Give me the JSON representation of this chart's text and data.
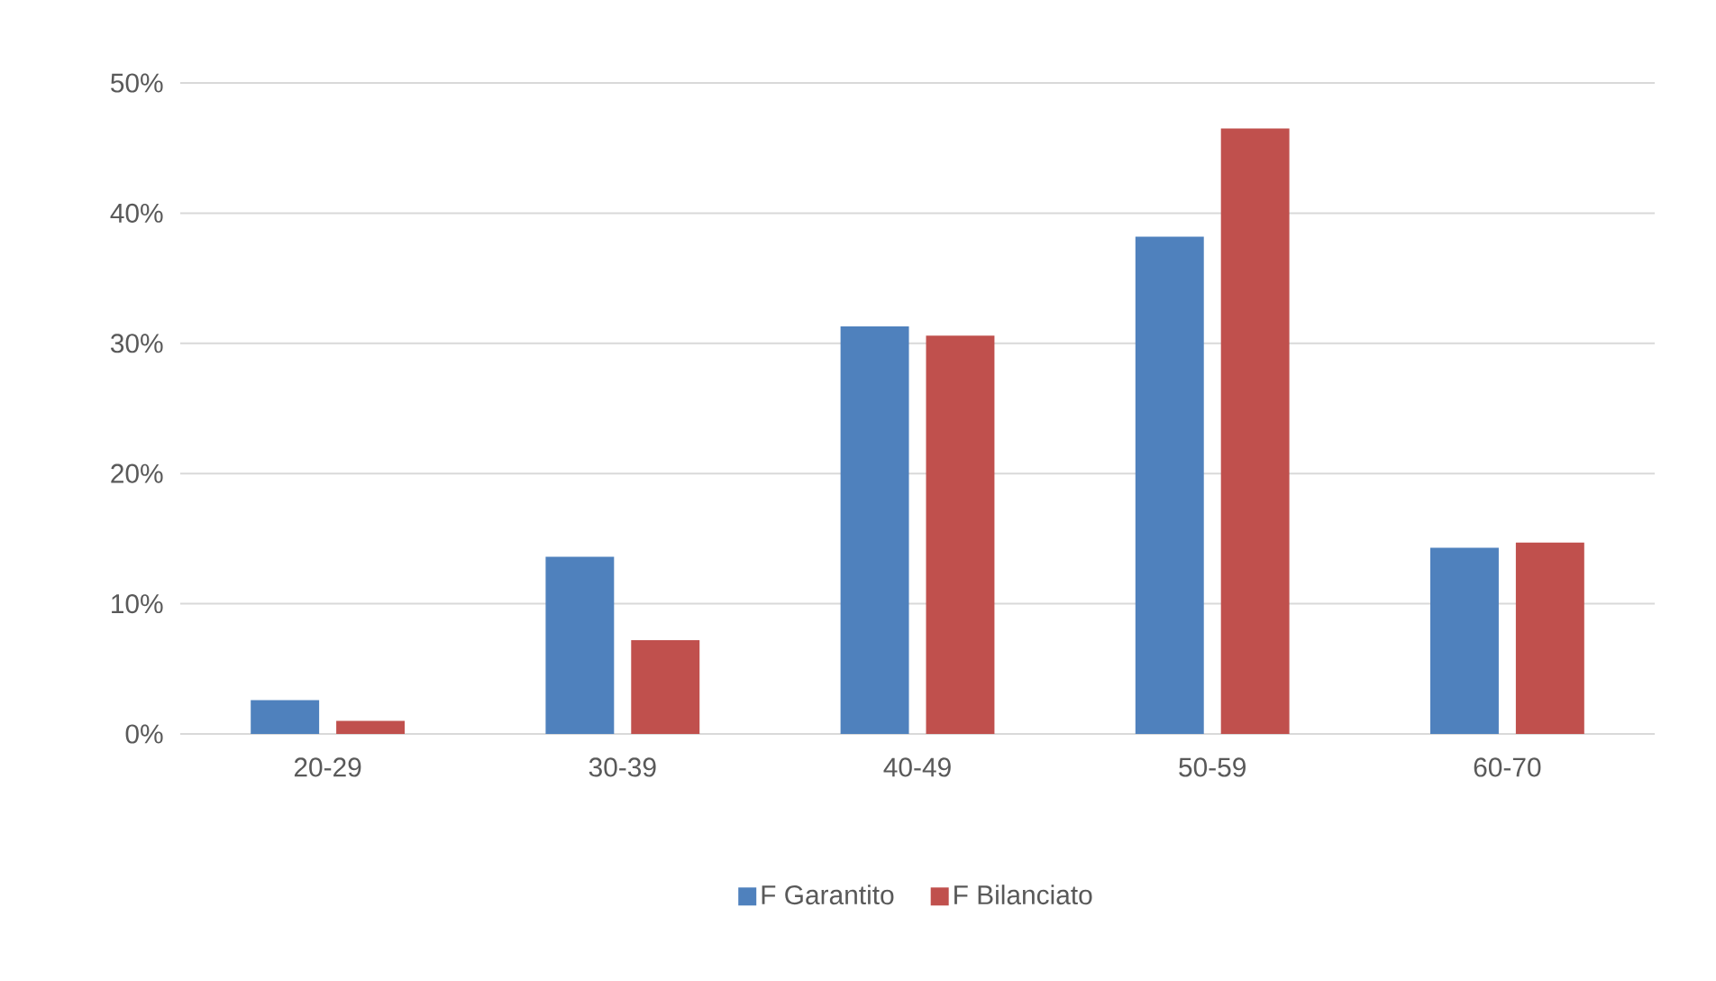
{
  "chart_data": {
    "type": "bar",
    "categories": [
      "20-29",
      "30-39",
      "40-49",
      "50-59",
      "60-70"
    ],
    "series": [
      {
        "name": "F Garantito",
        "color": "#4f81bd",
        "values": [
          2.6,
          13.6,
          31.3,
          38.2,
          14.3
        ]
      },
      {
        "name": "F Bilanciato",
        "color": "#c0504d",
        "values": [
          1.0,
          7.2,
          30.6,
          46.5,
          14.7
        ]
      }
    ],
    "ylim": [
      0,
      50
    ],
    "yticks": [
      {
        "value": 0,
        "label": "0%"
      },
      {
        "value": 10,
        "label": "10%"
      },
      {
        "value": 20,
        "label": "20%"
      },
      {
        "value": 30,
        "label": "30%"
      },
      {
        "value": 40,
        "label": "40%"
      },
      {
        "value": 50,
        "label": "50%"
      }
    ],
    "grid": "y",
    "legend": "bottom"
  }
}
